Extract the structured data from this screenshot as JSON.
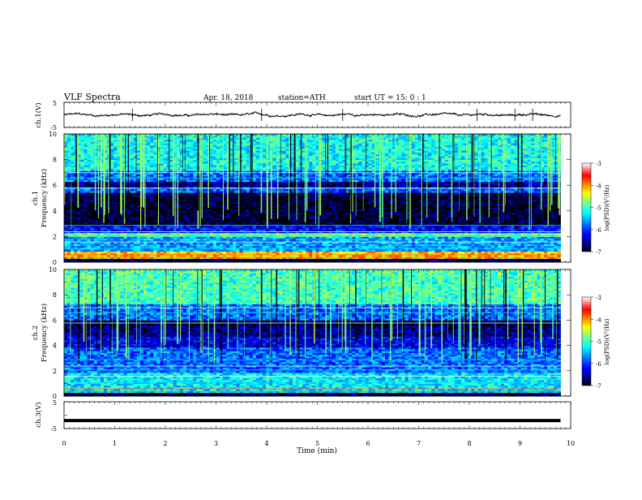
{
  "header": {
    "title": "VLF  Spectra",
    "date": "Apr. 18, 2018",
    "station": "station=ATH",
    "start": "start  UT  =    15: 0   : 1"
  },
  "colorbar": {
    "label": "log(PSD)(V²/Hz)",
    "ticks": [
      "-3",
      "-4",
      "-5",
      "-6",
      "-7"
    ],
    "colors": [
      "#000000",
      "#00007f",
      "#0000ff",
      "#0080ff",
      "#00ffff",
      "#7fff7f",
      "#ffff00",
      "#ff8000",
      "#ff0000",
      "#ffffff"
    ]
  },
  "chart_data": [
    {
      "type": "line",
      "panel": "ch1-waveform",
      "ylabel": "ch.1(V)",
      "ylim": [
        -5,
        5
      ],
      "y_ticks": [
        "5",
        "-5"
      ],
      "x_range": [
        0,
        10
      ],
      "xlabel": "",
      "description_values": {
        "mean": 0.0,
        "amplitude": 0.8
      }
    },
    {
      "type": "heatmap",
      "panel": "ch1-spectrogram",
      "ylabel_line1": "ch.1",
      "ylabel_line2": "Frequency (kHz)",
      "ylim": [
        0,
        10
      ],
      "y_ticks": [
        "0",
        "2",
        "4",
        "6",
        "8",
        "10"
      ],
      "x_range": [
        0,
        9.8
      ],
      "zlim": [
        -7,
        -3
      ],
      "bands": [
        {
          "f_from": 0,
          "f_to": 0.35,
          "level": -6.8
        },
        {
          "f_from": 0.35,
          "f_to": 0.9,
          "level": -4.2
        },
        {
          "f_from": 0.9,
          "f_to": 2.0,
          "level": -5.6
        },
        {
          "f_from": 2.0,
          "f_to": 2.3,
          "level": -4.8
        },
        {
          "f_from": 2.3,
          "f_to": 2.9,
          "level": -6.2
        },
        {
          "f_from": 2.9,
          "f_to": 5.4,
          "level": -6.9
        },
        {
          "f_from": 5.4,
          "f_to": 5.8,
          "level": -5.9
        },
        {
          "f_from": 5.8,
          "f_to": 6.3,
          "level": -6.6
        },
        {
          "f_from": 6.3,
          "f_to": 7.2,
          "level": -5.8
        },
        {
          "f_from": 7.2,
          "f_to": 10,
          "level": -5.2
        }
      ]
    },
    {
      "type": "heatmap",
      "panel": "ch2-spectrogram",
      "ylabel_line1": "ch.2",
      "ylabel_line2": "Frequency (kHz)",
      "ylim": [
        0,
        10
      ],
      "y_ticks": [
        "0",
        "2",
        "4",
        "6",
        "8",
        "10"
      ],
      "x_range": [
        0,
        9.8
      ],
      "zlim": [
        -7,
        -3
      ],
      "bands": [
        {
          "f_from": 0,
          "f_to": 0.3,
          "level": -6.8
        },
        {
          "f_from": 0.3,
          "f_to": 1.9,
          "level": -5.3
        },
        {
          "f_from": 1.9,
          "f_to": 3.9,
          "level": -5.8
        },
        {
          "f_from": 3.9,
          "f_to": 4.7,
          "level": -6.3
        },
        {
          "f_from": 4.7,
          "f_to": 5.6,
          "level": -6.6
        },
        {
          "f_from": 5.6,
          "f_to": 6.0,
          "level": -6.9
        },
        {
          "f_from": 6.0,
          "f_to": 7.3,
          "level": -5.8
        },
        {
          "f_from": 7.3,
          "f_to": 10,
          "level": -5.0
        }
      ]
    },
    {
      "type": "line",
      "panel": "ch3-waveform",
      "ylabel": "ch.3(V)",
      "ylim": [
        -5,
        5
      ],
      "y_ticks": [
        "5",
        "-5"
      ],
      "x_range": [
        0,
        9.8
      ],
      "value": -2.0
    }
  ],
  "xaxis": {
    "label": "Time  (min)",
    "range": [
      0,
      10
    ],
    "ticks": [
      "0",
      "1",
      "2",
      "3",
      "4",
      "5",
      "6",
      "7",
      "8",
      "9",
      "10"
    ]
  }
}
